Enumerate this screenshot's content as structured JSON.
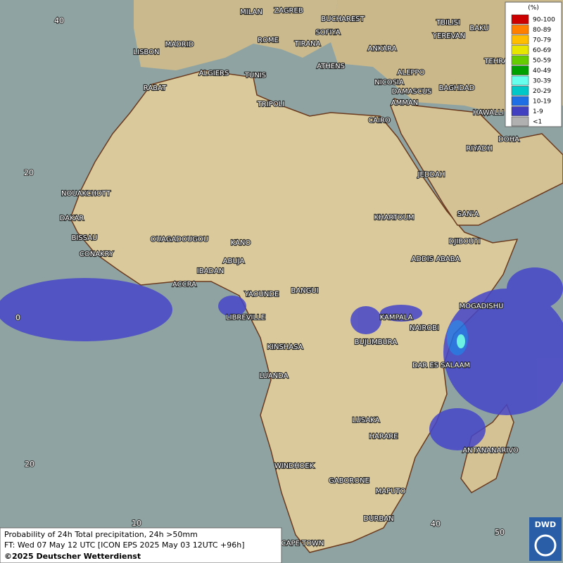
{
  "legend": {
    "title": "(%)",
    "items": [
      {
        "label": "90-100",
        "color": "#cc0000"
      },
      {
        "label": "80-89",
        "color": "#ff7f00"
      },
      {
        "label": "70-79",
        "color": "#ffbf00"
      },
      {
        "label": "60-69",
        "color": "#e6e600"
      },
      {
        "label": "50-59",
        "color": "#66cc00"
      },
      {
        "label": "40-49",
        "color": "#00a000"
      },
      {
        "label": "30-39",
        "color": "#66ffee"
      },
      {
        "label": "20-29",
        "color": "#00c8c8"
      },
      {
        "label": "10-19",
        "color": "#1e6ee6"
      },
      {
        "label": "1-9",
        "color": "#4040c0"
      },
      {
        "label": "<1",
        "color": "#b0b0b0"
      }
    ]
  },
  "cities": [
    "MILAN",
    "ZAGREB",
    "BUCHAREST",
    "SOFIYA",
    "ROME",
    "TIRANA",
    "MADRID",
    "LISBON",
    "ANKARA",
    "TBILISI",
    "YEREVAN",
    "BAKU",
    "TEHRA",
    "ATHENS",
    "ALGIERS",
    "TUNIS",
    "ALEPPO",
    "NICOSIA",
    "BAGHDAD",
    "RABAT",
    "DAMASCUS",
    "AMMAN",
    "TRIPOLI",
    "HAWALLI",
    "CAIRO",
    "DOHA",
    "RIYADH",
    "JEDDAH",
    "NOUAKCHOTT",
    "DAKAR",
    "KHARTOUM",
    "SAN'A",
    "BISSAU",
    "DJIBOUTI",
    "OUAGADOUGOU",
    "KANO",
    "CONAKRY",
    "ADDIS ABABA",
    "ABUJA",
    "IBADAN",
    "ACCRA",
    "YAOUNDE",
    "BANGUI",
    "MOGADISHU",
    "LIBREVILLE",
    "KAMPALA",
    "NAIROBI",
    "BUJUMBURA",
    "KINSHASA",
    "DAR ES SALAAM",
    "LUANDA",
    "LUSAKA",
    "HARARE",
    "ANTANANARIVO",
    "WINDHOEK",
    "GABORONE",
    "MAPUTO",
    "DURBAN",
    "CAPE TOWN"
  ],
  "grid_labels": [
    "40",
    "20",
    "0",
    "20",
    "10",
    "40",
    "50"
  ],
  "footer": [
    "Probability of 24h Total precipitation, 24h >50mm",
    "FT: Wed 07 May 12 UTC [ICON EPS 2025 May 03 12UTC +96h]",
    "©2025 Deutscher Wetterdienst"
  ],
  "logo": "DWD"
}
